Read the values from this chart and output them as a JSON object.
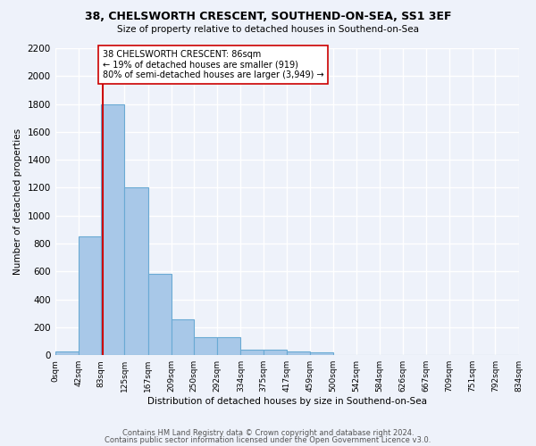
{
  "title1": "38, CHELSWORTH CRESCENT, SOUTHEND-ON-SEA, SS1 3EF",
  "title2": "Size of property relative to detached houses in Southend-on-Sea",
  "xlabel": "Distribution of detached houses by size in Southend-on-Sea",
  "ylabel": "Number of detached properties",
  "bin_edges": [
    0,
    42,
    83,
    125,
    167,
    209,
    250,
    292,
    334,
    375,
    417,
    459,
    500,
    542,
    584,
    626,
    667,
    709,
    751,
    792,
    834
  ],
  "bin_counts": [
    25,
    850,
    1800,
    1200,
    585,
    255,
    130,
    130,
    42,
    42,
    28,
    18,
    0,
    0,
    0,
    0,
    0,
    0,
    0,
    0
  ],
  "bar_color": "#a8c8e8",
  "bar_edge_color": "#6aaad4",
  "property_size": 86,
  "annotation_text": "38 CHELSWORTH CRESCENT: 86sqm\n← 19% of detached houses are smaller (919)\n80% of semi-detached houses are larger (3,949) →",
  "red_line_color": "#cc0000",
  "annotation_box_edge": "#cc0000",
  "footer1": "Contains HM Land Registry data © Crown copyright and database right 2024.",
  "footer2": "Contains public sector information licensed under the Open Government Licence v3.0.",
  "ylim": [
    0,
    2200
  ],
  "yticks": [
    0,
    200,
    400,
    600,
    800,
    1000,
    1200,
    1400,
    1600,
    1800,
    2000,
    2200
  ],
  "background_color": "#eef2fa",
  "grid_color": "#ffffff"
}
